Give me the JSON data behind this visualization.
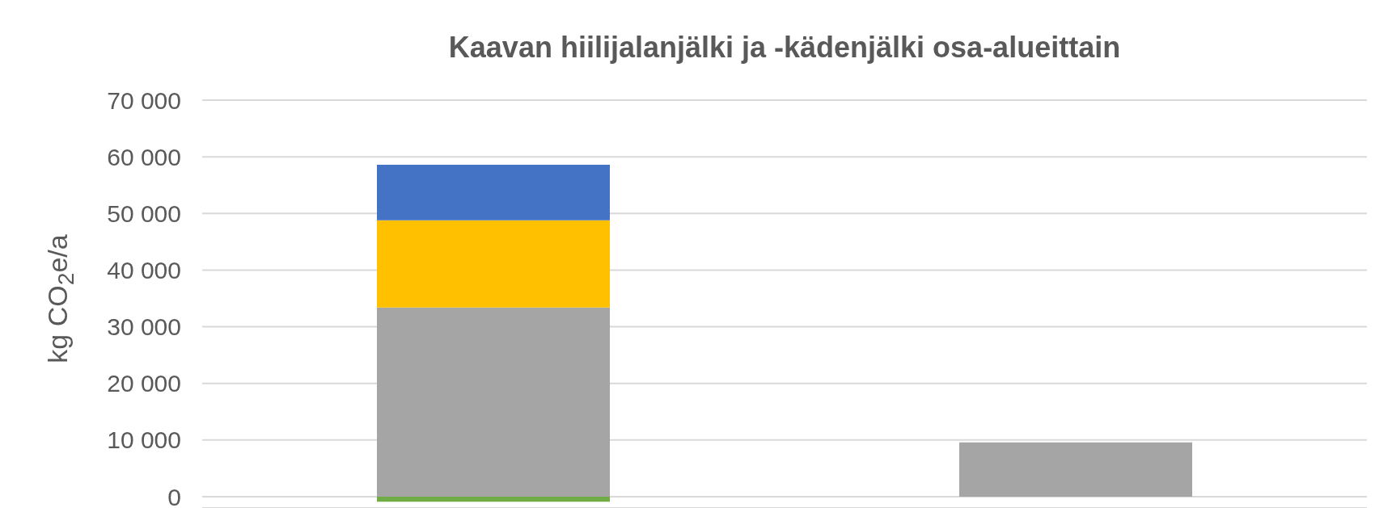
{
  "chart_data": {
    "type": "bar",
    "title": "Kaavan hiilijalanjälki ja -kädenjälki osa-alueittain",
    "ylabel": "kg CO$_{2}$e/a",
    "categories": [
      null,
      null
    ],
    "stacked": true,
    "series": [
      {
        "color": "#70ad47",
        "values": [
          -900,
          null
        ]
      },
      {
        "color": "#a5a5a5",
        "values": [
          33400,
          9600
        ]
      },
      {
        "color": "#ffc000",
        "values": [
          15400,
          null
        ]
      },
      {
        "color": "#4472c4",
        "values": [
          9800,
          null
        ]
      }
    ],
    "ylim": [
      -2000,
      70000
    ],
    "yticks": [
      {
        "value": 0,
        "label": "0"
      },
      {
        "value": 10000,
        "label": "10 000"
      },
      {
        "value": 20000,
        "label": "20 000"
      },
      {
        "value": 30000,
        "label": "30 000"
      },
      {
        "value": 40000,
        "label": "40 000"
      },
      {
        "value": 50000,
        "label": "50 000"
      },
      {
        "value": 60000,
        "label": "60 000"
      },
      {
        "value": 70000,
        "label": "70 000"
      }
    ],
    "grid": "y"
  }
}
